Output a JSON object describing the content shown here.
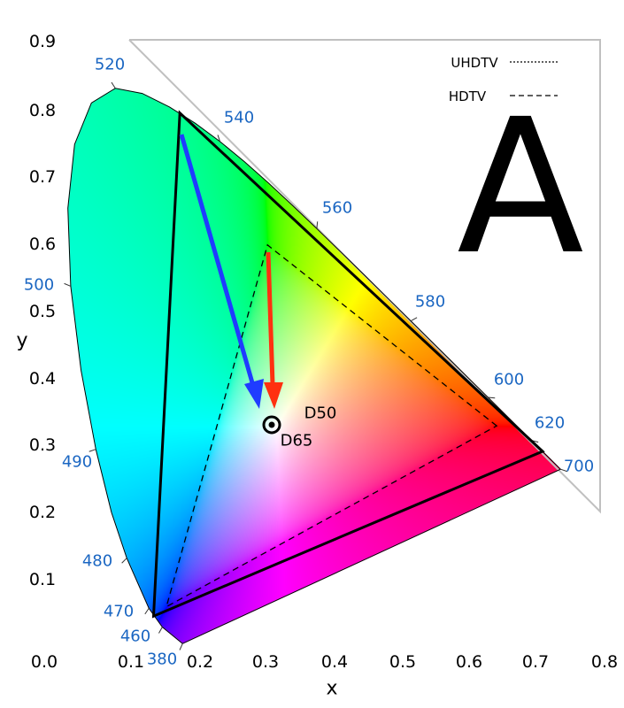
{
  "axes": {
    "x_label": "x",
    "y_label": "y",
    "x_ticks": [
      "0.1",
      "0.2",
      "0.3",
      "0.4",
      "0.5",
      "0.6",
      "0.7",
      "0.8"
    ],
    "y_ticks": [
      "0.9",
      "0.8",
      "0.7",
      "0.6",
      "0.5",
      "0.4",
      "0.3",
      "0.2",
      "0.1"
    ],
    "origin": "0.0"
  },
  "wavelengths": [
    "520",
    "540",
    "560",
    "580",
    "600",
    "620",
    "700",
    "500",
    "490",
    "480",
    "470",
    "460",
    "380"
  ],
  "white_points": {
    "d65": "D65",
    "d50": "D50"
  },
  "legend": {
    "uhdtv": "UHDTV",
    "hdtv": "HDTV"
  },
  "panel_letter": "A",
  "gamuts": {
    "rec2020": [
      [
        0.708,
        0.292
      ],
      [
        0.17,
        0.797
      ],
      [
        0.131,
        0.046
      ]
    ],
    "rec709": [
      [
        0.64,
        0.33
      ],
      [
        0.3,
        0.6
      ],
      [
        0.15,
        0.06
      ]
    ]
  },
  "colors": {
    "wavelength_labels": "#1a66c2",
    "arrow_blue": "#1f3cff",
    "arrow_red": "#ff3010",
    "frame": "#c0c0c0"
  }
}
